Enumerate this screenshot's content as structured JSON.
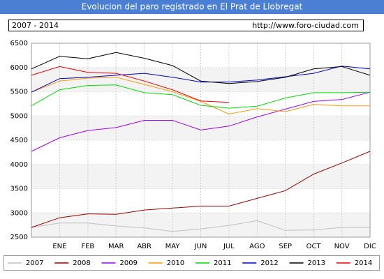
{
  "chart_data": {
    "type": "line",
    "title": "Evolucion del paro registrado en El Prat de Llobregat",
    "subtitle": "2007 - 2014",
    "source": "http://www.foro-ciudad.com",
    "categories": [
      null,
      "ENE",
      "FEB",
      "MAR",
      "ABR",
      "MAY",
      "JUN",
      "JUL",
      "AGO",
      "SEP",
      "OCT",
      "NOV",
      "DIC"
    ],
    "series": [
      {
        "name": "2007",
        "color": "#c0c0c0",
        "values": [
          2700,
          2790,
          2790,
          2730,
          2690,
          2620,
          2670,
          2740,
          2840,
          2640,
          2650,
          2700,
          2700
        ]
      },
      {
        "name": "2008",
        "color": "#990000",
        "values": [
          2700,
          2900,
          2980,
          2970,
          3060,
          3100,
          3140,
          3140,
          3300,
          3460,
          3800,
          4030,
          4270
        ]
      },
      {
        "name": "2009",
        "color": "#9900ff",
        "values": [
          4270,
          4550,
          4700,
          4760,
          4910,
          4910,
          4710,
          4790,
          4980,
          5140,
          5300,
          5340,
          5490
        ]
      },
      {
        "name": "2010",
        "color": "#ff9900",
        "values": [
          5490,
          5720,
          5780,
          5800,
          5650,
          5500,
          5300,
          5040,
          5150,
          5090,
          5240,
          5210,
          5210
        ]
      },
      {
        "name": "2011",
        "color": "#00dd00",
        "values": [
          5210,
          5540,
          5630,
          5640,
          5480,
          5440,
          5220,
          5160,
          5200,
          5370,
          5480,
          5480,
          5490
        ]
      },
      {
        "name": "2012",
        "color": "#0000cc",
        "values": [
          5490,
          5770,
          5800,
          5840,
          5880,
          5800,
          5700,
          5700,
          5740,
          5810,
          5880,
          6030,
          5970
        ]
      },
      {
        "name": "2013",
        "color": "#000000",
        "values": [
          5970,
          6230,
          6180,
          6310,
          6190,
          6040,
          5720,
          5670,
          5710,
          5800,
          5970,
          6020,
          5840
        ]
      },
      {
        "name": "2014",
        "color": "#ee0000",
        "values": [
          5840,
          6020,
          5900,
          5880,
          5720,
          5540,
          5310,
          5280,
          null,
          null,
          null,
          null,
          null
        ]
      }
    ],
    "ylim": [
      2500,
      6500
    ],
    "yticks": [
      2500,
      3000,
      3500,
      4000,
      4500,
      5000,
      5500,
      6000,
      6500
    ],
    "grid": true
  }
}
